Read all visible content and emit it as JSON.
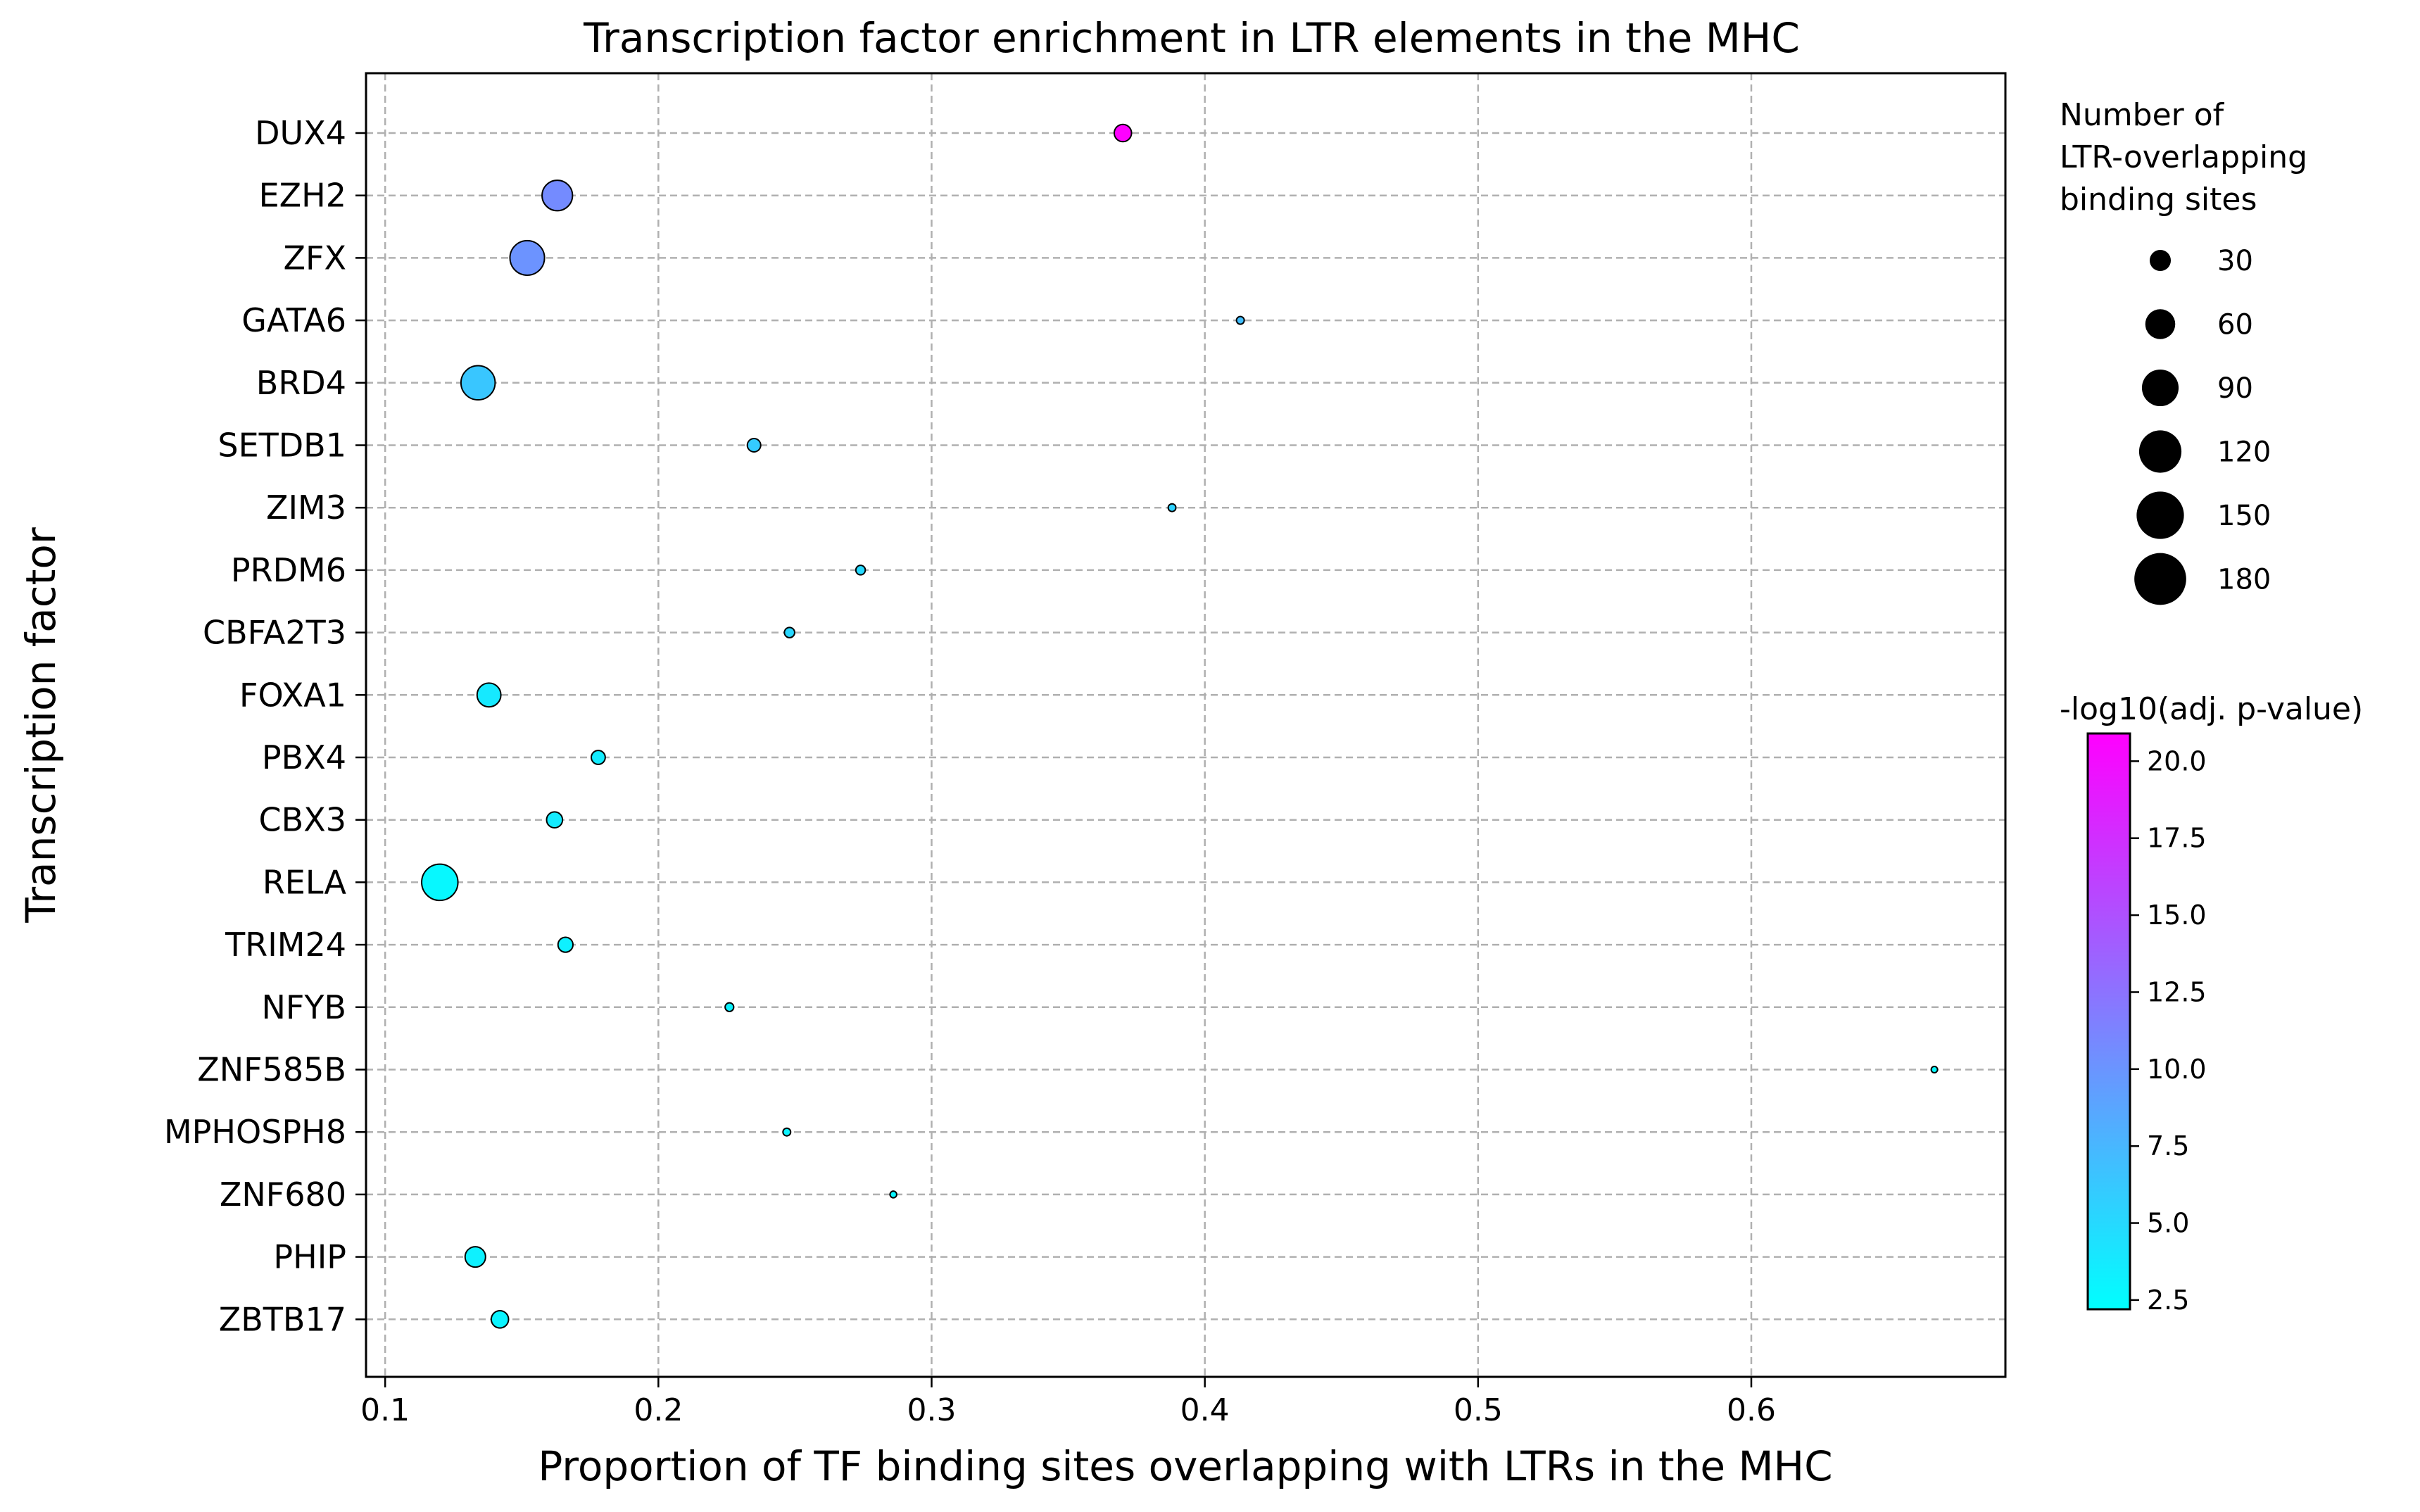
{
  "chart_data": {
    "type": "scatter",
    "title": "Transcription factor enrichment in LTR elements in the MHC",
    "xlabel": "Proportion of TF binding sites overlapping with LTRs in the MHC",
    "ylabel": "Transcription factor",
    "xlim": [
      0.093,
      0.693
    ],
    "xticks": [
      0.1,
      0.2,
      0.3,
      0.4,
      0.5,
      0.6
    ],
    "xtick_labels": [
      "0.1",
      "0.2",
      "0.3",
      "0.4",
      "0.5",
      "0.6"
    ],
    "grid": true,
    "points": [
      {
        "tf": "DUX4",
        "x": 0.37,
        "count": 20,
        "neglog10p": 20.8
      },
      {
        "tf": "EZH2",
        "x": 0.163,
        "count": 62,
        "neglog10p": 10.7
      },
      {
        "tf": "ZFX",
        "x": 0.152,
        "count": 80,
        "neglog10p": 10.1
      },
      {
        "tf": "GATA6",
        "x": 0.413,
        "count": 4,
        "neglog10p": 7.0
      },
      {
        "tf": "BRD4",
        "x": 0.134,
        "count": 78,
        "neglog10p": 6.4
      },
      {
        "tf": "SETDB1",
        "x": 0.235,
        "count": 12,
        "neglog10p": 6.0
      },
      {
        "tf": "ZIM3",
        "x": 0.388,
        "count": 4,
        "neglog10p": 5.5
      },
      {
        "tf": "PRDM6",
        "x": 0.274,
        "count": 6,
        "neglog10p": 5.0
      },
      {
        "tf": "CBFA2T3",
        "x": 0.248,
        "count": 7,
        "neglog10p": 5.1
      },
      {
        "tf": "FOXA1",
        "x": 0.138,
        "count": 38,
        "neglog10p": 3.8
      },
      {
        "tf": "PBX4",
        "x": 0.178,
        "count": 13,
        "neglog10p": 3.6
      },
      {
        "tf": "CBX3",
        "x": 0.162,
        "count": 17,
        "neglog10p": 3.7
      },
      {
        "tf": "RELA",
        "x": 0.12,
        "count": 88,
        "neglog10p": 2.7
      },
      {
        "tf": "TRIM24",
        "x": 0.166,
        "count": 15,
        "neglog10p": 3.2
      },
      {
        "tf": "NFYB",
        "x": 0.226,
        "count": 5,
        "neglog10p": 3.1
      },
      {
        "tf": "ZNF585B",
        "x": 0.667,
        "count": 1,
        "neglog10p": 2.6
      },
      {
        "tf": "MPHOSPH8",
        "x": 0.247,
        "count": 4,
        "neglog10p": 3.0
      },
      {
        "tf": "ZNF680",
        "x": 0.286,
        "count": 3,
        "neglog10p": 2.9
      },
      {
        "tf": "PHIP",
        "x": 0.133,
        "count": 28,
        "neglog10p": 3.2
      },
      {
        "tf": "ZBTB17",
        "x": 0.142,
        "count": 20,
        "neglog10p": 3.0
      }
    ],
    "size_legend": {
      "title": [
        "Number of",
        "LTR-overlapping",
        "binding sites"
      ],
      "values": [
        30,
        60,
        90,
        120,
        150,
        180
      ],
      "labels": [
        "30",
        "60",
        "90",
        "120",
        "150",
        "180"
      ],
      "color": "#000000",
      "placement": "upper-right"
    },
    "colorbar": {
      "label": "-log10(adj. p-value)",
      "colormap": "cool",
      "color_low": "#00ffff",
      "color_high": "#ff00ff",
      "range": [
        2.2,
        20.9
      ],
      "ticks": [
        2.5,
        5.0,
        7.5,
        10.0,
        12.5,
        15.0,
        17.5,
        20.0
      ],
      "tick_labels": [
        "2.5",
        "5.0",
        "7.5",
        "10.0",
        "12.5",
        "15.0",
        "17.5",
        "20.0"
      ],
      "placement": "lower-right"
    }
  }
}
